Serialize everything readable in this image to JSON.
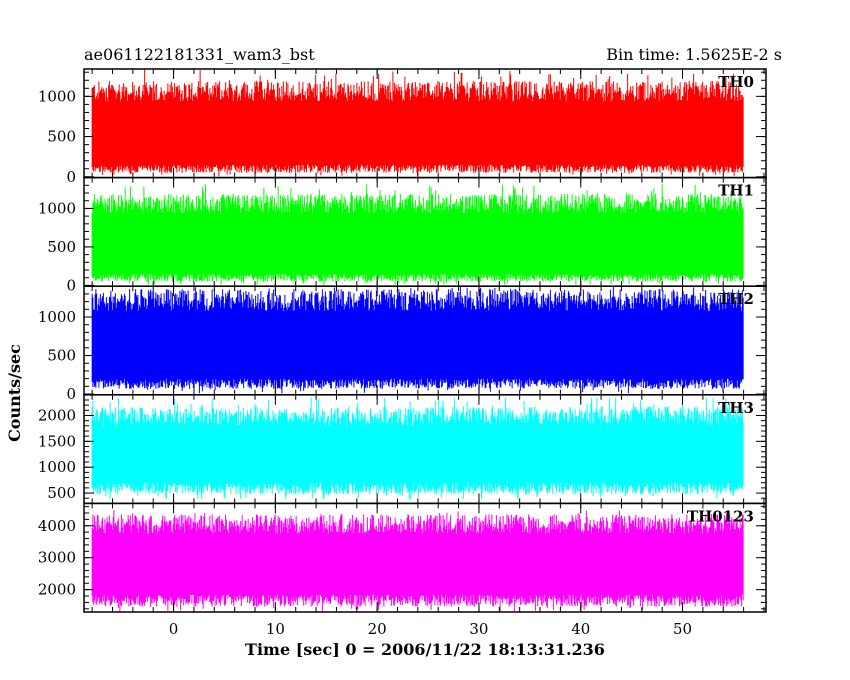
{
  "chart_data": {
    "type": "line",
    "title_left": "ae061122181331_wam3_bst",
    "title_right": "Bin time: 1.5625E-2 s",
    "xlabel": "Time [sec] 0 = 2006/11/22 18:13:31.236",
    "ylabel": "Counts/sec",
    "xlim": [
      -8.8,
      58.2
    ],
    "x_data_range": [
      -8,
      56
    ],
    "x_ticks": [
      0,
      10,
      20,
      30,
      40,
      50
    ],
    "panels": [
      {
        "name": "TH0",
        "color": "#ff0000",
        "ylim": [
          -10,
          1340
        ],
        "y_ticks": [
          0,
          500,
          1000
        ],
        "envelope": {
          "typical_low": 150,
          "typical_high": 1000,
          "min": 5,
          "max": 1340
        }
      },
      {
        "name": "TH1",
        "color": "#00ff00",
        "ylim": [
          -10,
          1400
        ],
        "y_ticks": [
          0,
          500,
          1000
        ],
        "envelope": {
          "typical_low": 150,
          "typical_high": 1000,
          "min": 5,
          "max": 1320
        }
      },
      {
        "name": "TH2",
        "color": "#0000ff",
        "ylim": [
          -10,
          1400
        ],
        "y_ticks": [
          0,
          500,
          1000
        ],
        "envelope": {
          "typical_low": 200,
          "typical_high": 1150,
          "min": 10,
          "max": 1400
        }
      },
      {
        "name": "TH3",
        "color": "#00ffff",
        "ylim": [
          300,
          2400
        ],
        "y_ticks": [
          500,
          1000,
          1500,
          2000
        ],
        "envelope": {
          "typical_low": 700,
          "typical_high": 1900,
          "min": 380,
          "max": 2350
        }
      },
      {
        "name": "TH0123",
        "color": "#ff00ff",
        "ylim": [
          1300,
          4700
        ],
        "y_ticks": [
          2000,
          3000,
          4000
        ],
        "envelope": {
          "typical_low": 1850,
          "typical_high": 3900,
          "min": 1300,
          "max": 4500
        }
      }
    ]
  }
}
